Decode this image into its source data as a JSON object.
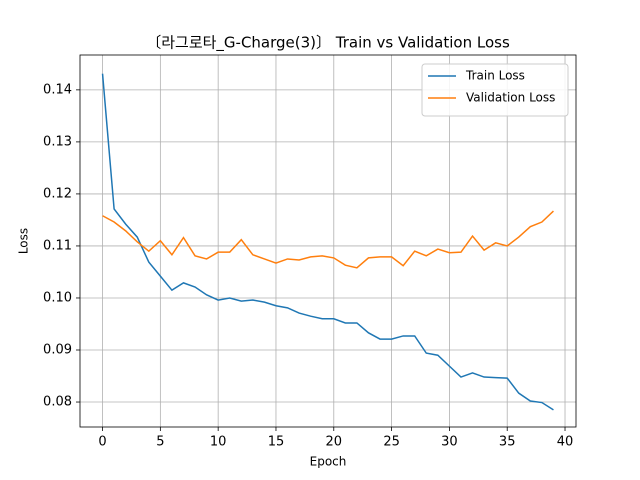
{
  "chart_data": {
    "type": "line",
    "title": "〔라그로타_G-Charge(3)〕 Train vs Validation Loss",
    "x_label": "Epoch",
    "y_label": "Loss",
    "x": [
      0,
      1,
      2,
      3,
      4,
      5,
      6,
      7,
      8,
      9,
      10,
      11,
      12,
      13,
      14,
      15,
      16,
      17,
      18,
      19,
      20,
      21,
      22,
      23,
      24,
      25,
      26,
      27,
      28,
      29,
      30,
      31,
      32,
      33,
      34,
      35,
      36,
      37,
      38,
      39
    ],
    "series": [
      {
        "name": "Train Loss",
        "color": "#1f77b4",
        "values": [
          0.1431,
          0.1171,
          0.1142,
          0.1117,
          0.1069,
          0.1042,
          0.1015,
          0.1029,
          0.1021,
          0.1006,
          0.0996,
          0.1,
          0.0994,
          0.0996,
          0.0992,
          0.0985,
          0.0981,
          0.0971,
          0.0965,
          0.096,
          0.096,
          0.0952,
          0.0952,
          0.0933,
          0.0921,
          0.0921,
          0.0927,
          0.0927,
          0.0894,
          0.089,
          0.0869,
          0.0848,
          0.0856,
          0.0848,
          0.0847,
          0.0846,
          0.0817,
          0.0802,
          0.0799,
          0.0785
        ]
      },
      {
        "name": "Validation Loss",
        "color": "#ff7f0e",
        "values": [
          0.1158,
          0.1146,
          0.1129,
          0.1108,
          0.109,
          0.111,
          0.1083,
          0.1116,
          0.1081,
          0.1075,
          0.1088,
          0.1088,
          0.1112,
          0.1083,
          0.1075,
          0.1067,
          0.1075,
          0.1073,
          0.1079,
          0.1081,
          0.1077,
          0.1063,
          0.1058,
          0.1077,
          0.1079,
          0.1079,
          0.1062,
          0.109,
          0.1081,
          0.1094,
          0.1087,
          0.1088,
          0.1119,
          0.1092,
          0.1106,
          0.11,
          0.1117,
          0.1137,
          0.1146,
          0.1167
        ]
      }
    ],
    "xlim": [
      -1.95,
      40.95
    ],
    "xticks": [
      0,
      5,
      10,
      15,
      20,
      25,
      30,
      35,
      40
    ],
    "ylim": [
      0.0752,
      0.1467
    ],
    "yticks": [
      0.08,
      0.09,
      {
        "value": 0.1,
        "label": "0.10"
      },
      0.11,
      0.12,
      0.13,
      0.14
    ],
    "grid": true,
    "legend": "upper right"
  }
}
